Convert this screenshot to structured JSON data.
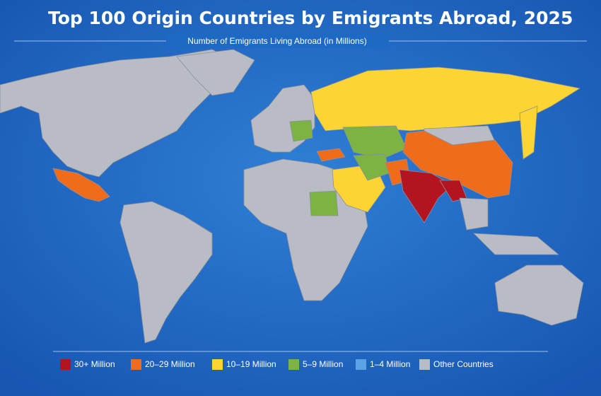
{
  "title": "Top 100 Origin Countries by Emigrants Abroad, 2025",
  "subtitle": "Number of Emigrants Living Abroad (in Millions)",
  "legend": [
    {
      "label": "30+ Million",
      "color": "#b3141f"
    },
    {
      "label": "20–29 Million",
      "color": "#ef6c1a"
    },
    {
      "label": "10–19 Million",
      "color": "#fcd433"
    },
    {
      "label": "5–9 Million",
      "color": "#7cb342"
    },
    {
      "label": "1–4 Million",
      "color": "#5aa3e6"
    },
    {
      "label": "Other Countries",
      "color": "#b9bcc4"
    }
  ]
}
